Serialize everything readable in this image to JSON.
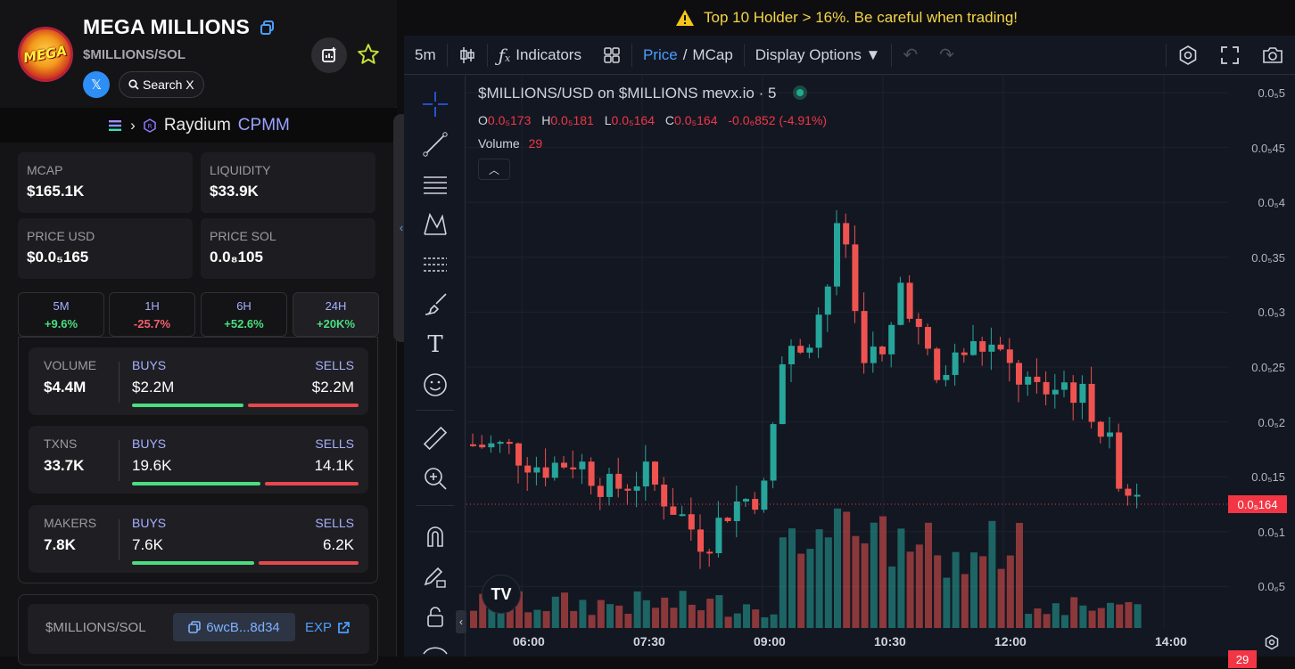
{
  "token": {
    "name": "MEGA MILLIONS",
    "pair": "$MILLIONS/SOL",
    "logo_text": "MEGA",
    "search_label": "Search X"
  },
  "dex": {
    "name": "Raydium",
    "type": "CPMM"
  },
  "stats": {
    "mcap": {
      "label": "MCAP",
      "value": "$165.1K"
    },
    "liquidity": {
      "label": "LIQUIDITY",
      "value": "$33.9K"
    },
    "price_usd": {
      "label": "PRICE USD",
      "value": "$0.0₅165"
    },
    "price_sol": {
      "label": "PRICE SOL",
      "value": "0.0₈105"
    }
  },
  "timeframes": [
    {
      "label": "5M",
      "value": "+9.6%",
      "dir": "up"
    },
    {
      "label": "1H",
      "value": "-25.7%",
      "dir": "down"
    },
    {
      "label": "6H",
      "value": "+52.6%",
      "dir": "up"
    },
    {
      "label": "24H",
      "value": "+20K%",
      "dir": "up"
    }
  ],
  "trade_stats": [
    {
      "label": "VOLUME",
      "total": "$4.4M",
      "buys_label": "BUYS",
      "buys": "$2.2M",
      "sells_label": "SELLS",
      "sells": "$2.2M",
      "buy_ratio": 0.5
    },
    {
      "label": "TXNS",
      "total": "33.7K",
      "buys_label": "BUYS",
      "buys": "19.6K",
      "sells_label": "SELLS",
      "sells": "14.1K",
      "buy_ratio": 0.58
    },
    {
      "label": "MAKERS",
      "total": "7.8K",
      "buys_label": "BUYS",
      "buys": "7.6K",
      "sells_label": "SELLS",
      "sells": "6.2K",
      "buy_ratio": 0.55
    }
  ],
  "address": {
    "label": "$MILLIONS/SOL",
    "short": "6wcB...8d34",
    "explorer": "EXP"
  },
  "warning": "Top 10 Holder > 16%. Be careful when trading!",
  "toolbar": {
    "interval": "5m",
    "indicators": "Indicators",
    "price": "Price",
    "slash": "/",
    "mcap": "MCap",
    "display": "Display Options ▼"
  },
  "chart": {
    "legend": "$MILLIONS/USD on $MILLIONS mevx.io · 5",
    "ohlc": {
      "o_label": "O",
      "o": "0.0₅173",
      "h_label": "H",
      "h": "0.0₅181",
      "l_label": "L",
      "l": "0.0₅164",
      "c_label": "C",
      "c": "0.0₅164",
      "chg": "-0.0₆852 (-4.91%)"
    },
    "volume_label": "Volume",
    "volume_value": "29",
    "price_tag": "0.0₅164",
    "volume_tag": "29",
    "y_ticks": [
      "0.0₅5",
      "0.0₅45",
      "0.0₅4",
      "0.0₅35",
      "0.0₅3",
      "0.0₅25",
      "0.0₅2",
      "0.0₅15",
      "0.0₅1",
      "0.0₆5"
    ],
    "x_ticks": [
      "06:00",
      "07:30",
      "09:00",
      "10:30",
      "12:00",
      "14:00"
    ]
  },
  "colors": {
    "up": "#26a69a",
    "down": "#ef5350",
    "accent": "#4a9eff",
    "warn": "#f5d547"
  }
}
